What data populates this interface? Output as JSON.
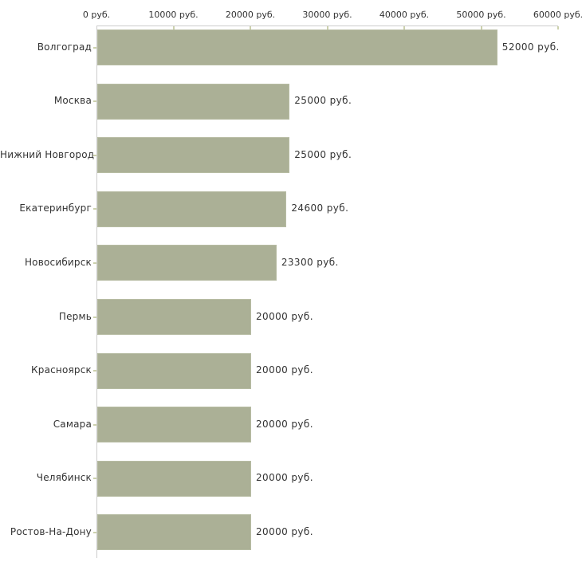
{
  "chart_data": {
    "type": "bar",
    "orientation": "horizontal",
    "title": "",
    "xlabel": "",
    "ylabel": "",
    "grid": false,
    "legend": "none",
    "categories": [
      "Волгоград",
      "Москва",
      "Нижний Новгород",
      "Екатеринбург",
      "Новосибирск",
      "Пермь",
      "Красноярск",
      "Самара",
      "Челябинск",
      "Ростов-На-Дону"
    ],
    "values": [
      52000,
      25000,
      25000,
      24600,
      23300,
      20000,
      20000,
      20000,
      20000,
      20000
    ],
    "value_labels": [
      "52000 руб.",
      "25000 руб.",
      "25000 руб.",
      "24600 руб.",
      "23300 руб.",
      "20000 руб.",
      "20000 руб.",
      "20000 руб.",
      "20000 руб.",
      "20000 руб."
    ],
    "x_axis": {
      "position": "top",
      "min": 0,
      "max": 60000,
      "ticks": [
        0,
        10000,
        20000,
        30000,
        40000,
        50000,
        60000
      ],
      "tick_labels": [
        "0 руб.",
        "10000 руб.",
        "20000 руб.",
        "30000 руб.",
        "40000 руб.",
        "50000 руб.",
        "60000 руб."
      ]
    },
    "colors": {
      "bar": "#abb096",
      "bar_border": "#b7bca3",
      "axis_line": "#cccccc",
      "tick_mark": "#ccd1ad",
      "text": "#333333",
      "background": "#ffffff"
    }
  }
}
